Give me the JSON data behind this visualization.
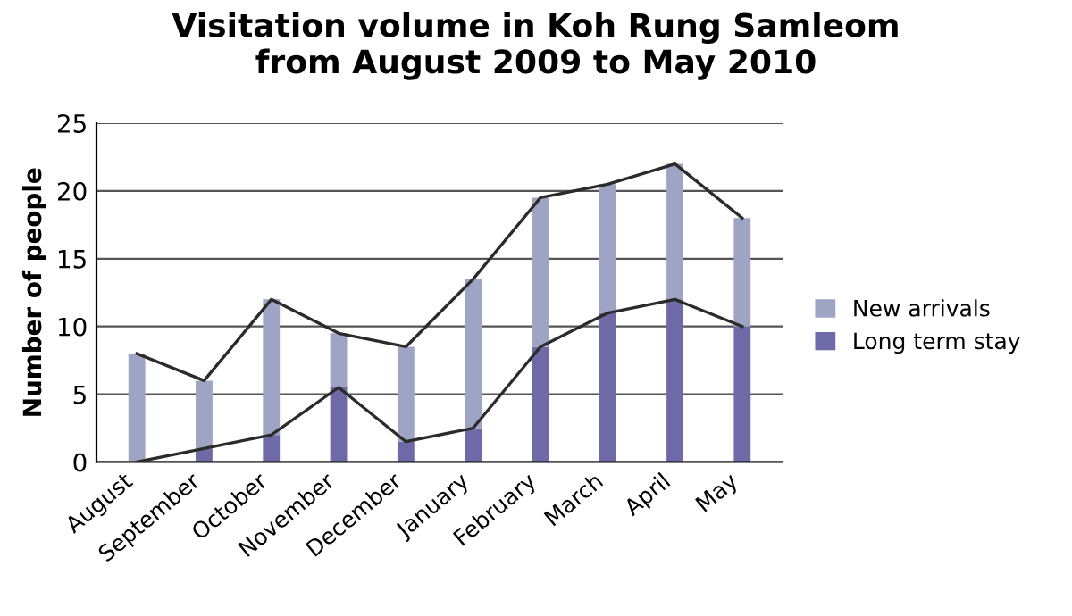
{
  "chart_data": {
    "type": "bar",
    "title": "Visitation volume in Koh Rung Samleom\nfrom August 2009 to May 2010",
    "ylabel": "Number of people",
    "categories": [
      "August",
      "September",
      "October",
      "November",
      "December",
      "January",
      "February",
      "March",
      "April",
      "May"
    ],
    "stacked": true,
    "ylim": [
      0,
      25
    ],
    "yticks": [
      0,
      5,
      10,
      15,
      20,
      25
    ],
    "grid": "y",
    "legend": "right",
    "series": [
      {
        "name": "Long term stay",
        "color": "#6e6aa8",
        "values": [
          0,
          1,
          2,
          5.5,
          1.5,
          2.5,
          8.5,
          11,
          12,
          10
        ]
      },
      {
        "name": "New arrivals",
        "color": "#9ea4c4",
        "values": [
          8,
          5,
          10,
          4,
          7,
          11,
          11,
          9.5,
          10,
          8
        ]
      },
      {
        "type": "line",
        "color": "#2b2b2b",
        "values": [
          8,
          6,
          12,
          9.5,
          8.5,
          13.5,
          19.5,
          20.5,
          22,
          18
        ]
      },
      {
        "type": "line",
        "color": "#2b2b2b",
        "values": [
          0,
          1,
          2,
          5.5,
          1.5,
          2.5,
          8.5,
          11,
          12,
          10
        ]
      }
    ]
  }
}
